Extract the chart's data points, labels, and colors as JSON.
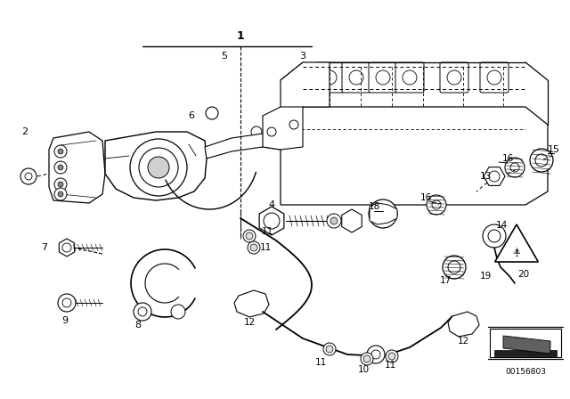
{
  "bg_color": "#ffffff",
  "diagram_id": "00156803",
  "lc": "#000000",
  "tc": "#000000",
  "figsize": [
    6.4,
    4.48
  ],
  "dpi": 100
}
